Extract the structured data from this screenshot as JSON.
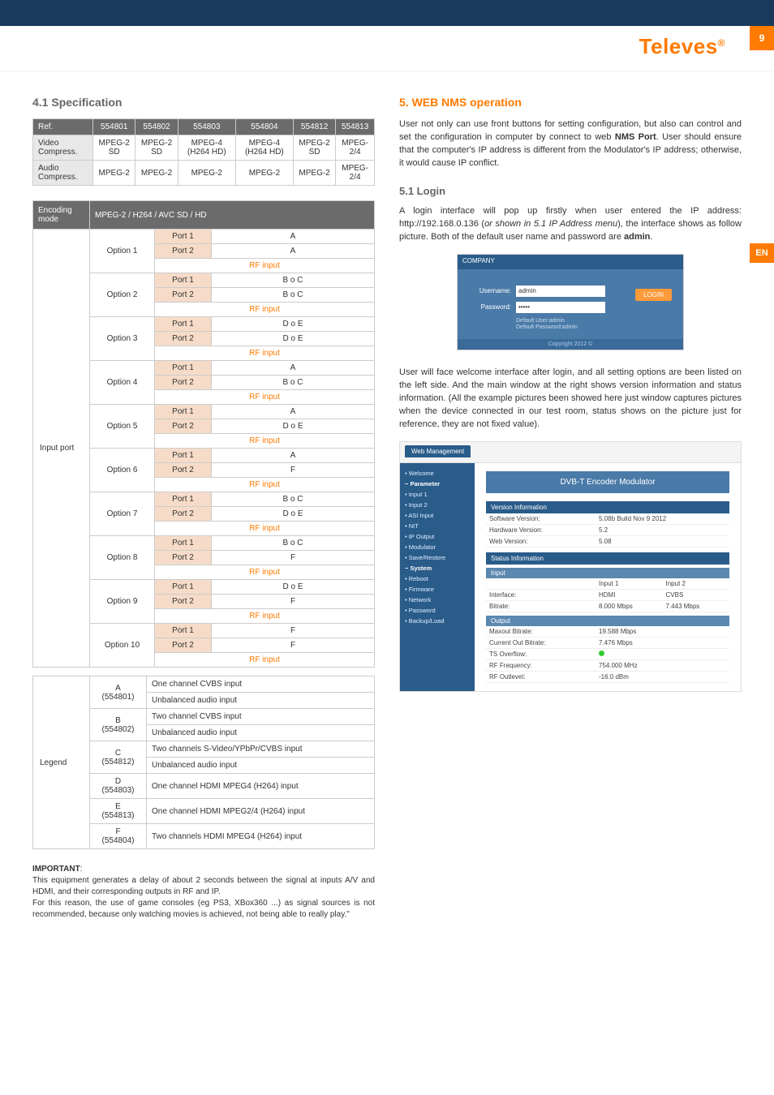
{
  "brand": "Televes",
  "page_number": "9",
  "lang_badge": "EN",
  "left": {
    "heading": "4.1 Specification",
    "spec_table": {
      "header": [
        "Ref.",
        "554801",
        "554802",
        "554803",
        "554804",
        "554812",
        "554813"
      ],
      "rows": [
        {
          "label": "Video Compress.",
          "cells": [
            "MPEG-2 SD",
            "MPEG-2 SD",
            "MPEG-4 (H264 HD)",
            "MPEG-4 (H264 HD)",
            "MPEG-2 SD",
            "MPEG-2/4"
          ]
        },
        {
          "label": "Audio Compress.",
          "cells": [
            "MPEG-2",
            "MPEG-2",
            "MPEG-2",
            "MPEG-2",
            "MPEG-2",
            "MPEG-2/4"
          ]
        }
      ]
    },
    "enc_table": {
      "header_left": "Encoding mode",
      "header_right": "MPEG-2 / H264 / AVC SD / HD",
      "side_label": "Input port",
      "rf_label": "RF input",
      "options": [
        {
          "name": "Option 1",
          "p1": "A",
          "p2": "A"
        },
        {
          "name": "Option 2",
          "p1": "B o C",
          "p2": "B o C"
        },
        {
          "name": "Option 3",
          "p1": "D o E",
          "p2": "D o E"
        },
        {
          "name": "Option 4",
          "p1": "A",
          "p2": "B o C"
        },
        {
          "name": "Option 5",
          "p1": "A",
          "p2": "D o E"
        },
        {
          "name": "Option 6",
          "p1": "A",
          "p2": "F"
        },
        {
          "name": "Option 7",
          "p1": "B o C",
          "p2": "D o E"
        },
        {
          "name": "Option 8",
          "p1": "B o C",
          "p2": "F"
        },
        {
          "name": "Option 9",
          "p1": "D o E",
          "p2": "F"
        },
        {
          "name": "Option 10",
          "p1": "F",
          "p2": "F"
        }
      ],
      "port1": "Port 1",
      "port2": "Port 2"
    },
    "legend_table": {
      "side_label": "Legend",
      "rows": [
        {
          "k": "A",
          "ref": "(554801)",
          "l1": "One channel CVBS input",
          "l2": "Unbalanced audio input"
        },
        {
          "k": "B",
          "ref": "(554802)",
          "l1": "Two channel CVBS input",
          "l2": "Unbalanced audio input"
        },
        {
          "k": "C",
          "ref": "(554812)",
          "l1": "Two channels S-Video/YPbPr/CVBS input",
          "l2": "Unbalanced audio input"
        },
        {
          "k": "D",
          "ref": "(554803)",
          "l1": "One channel HDMI MPEG4 (H264) input",
          "l2": ""
        },
        {
          "k": "E",
          "ref": "(554813)",
          "l1": "One channel HDMI MPEG2/4 (H264) input",
          "l2": ""
        },
        {
          "k": "F",
          "ref": "(554804)",
          "l1": "Two channels HDMI MPEG4 (H264) input",
          "l2": ""
        }
      ]
    },
    "important_label": "IMPORTANT",
    "important_text": "This equipment generates a delay of about 2 seconds between the signal at inputs A/V and HDMI, and their corresponding outputs in RF and IP.\nFor this reason, the use of game consoles (eg PS3, XBox360 ...) as signal sources is not recommended, because only watching movies is achieved, not being able to really play.\""
  },
  "right": {
    "heading": "5. WEB NMS operation",
    "p1a": "User not only can use front buttons for setting configuration, but also can control and set the configuration in computer by connect to web ",
    "p1b": "NMS Port",
    "p1c": ". User should ensure that the computer's IP address is different from the Modulator's IP address; otherwise, it would cause IP conflict.",
    "sub1": "5.1 Login",
    "p2a": "A login interface will pop up firstly when user entered the IP address: http://192.168.0.136 (",
    "p2b": "or shown in 5.1 IP Address menu",
    "p2c": "), the interface shows as follow picture. Both of the default user name and password are ",
    "p2d": "admin",
    "p2e": ".",
    "login": {
      "user_label": "Username:",
      "pass_label": "Password:",
      "user_val": "admin",
      "pass_val": "•••••",
      "btn": "LOGIN",
      "hint1": "Default User:admin",
      "hint2": "Default Password:admin",
      "foot": "Copyright 2012 ©"
    },
    "p3": "User will face welcome interface after login, and all setting options are been listed on the left side. And the main window at the right shows version information and status information. (All the example pictures been showed here just window captures pictures when the device connected in our test room, status shows on the picture just for reference, they are not fixed value).",
    "dash": {
      "tab": "Web Management",
      "title": "DVB-T Encoder Modulator",
      "side": {
        "welcome": "• Welcome",
        "parameter": "− Parameter",
        "p_items": [
          "• Input 1",
          "• Input 2",
          "• ASI Input",
          "• NIT",
          "• IP Output",
          "• Modulator",
          "• Save/Restore"
        ],
        "system": "− System",
        "s_items": [
          "• Reboot",
          "• Firmware",
          "• Network",
          "• Password",
          "• Backup/Load"
        ]
      },
      "ver_hdr": "Version Information",
      "ver": [
        [
          "Software Version:",
          "5.08b Build Nov 9 2012"
        ],
        [
          "Hardware Version:",
          "5.2"
        ],
        [
          "Web Version:",
          "5.08"
        ]
      ],
      "stat_hdr": "Status Information",
      "input_hdr": "Input",
      "input_cols": [
        "",
        "Input 1",
        "Input 2"
      ],
      "input_rows": [
        [
          "Interface:",
          "HDMI",
          "CVBS"
        ],
        [
          "Bitrate:",
          "8.000 Mbps",
          "7.443 Mbps"
        ]
      ],
      "output_hdr": "Output",
      "output_rows": [
        [
          "Maxout Bitrate:",
          "19.588 Mbps"
        ],
        [
          "Current Out Bitrate:",
          "7.476 Mbps"
        ],
        [
          "TS Overflow:",
          "●"
        ],
        [
          "RF Frequency:",
          "754.000 MHz"
        ],
        [
          "RF Outlevel:",
          "-16.0 dBm"
        ]
      ]
    }
  },
  "colors": {
    "orange": "#ff7a00",
    "navy": "#1a3a5c",
    "tbl_hdr": "#6b6b6b",
    "port_bg": "#f6dcc8",
    "dash_blue": "#2a5c8a"
  }
}
